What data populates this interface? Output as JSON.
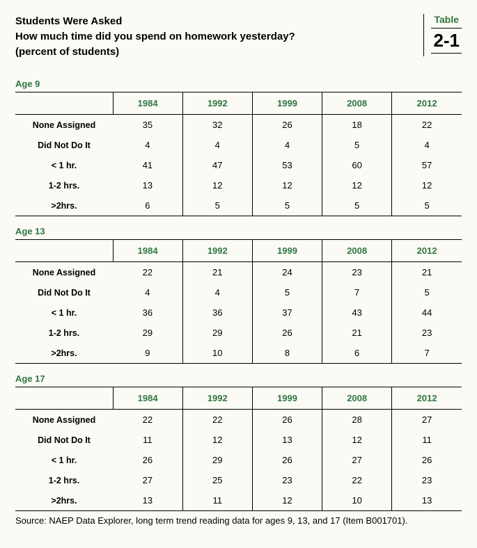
{
  "colors": {
    "accent": "#2a7a3f",
    "text": "#000000",
    "background": "#fcfaf5",
    "border": "#000000"
  },
  "header": {
    "line1": "Students Were Asked",
    "line2": "How much time did you spend on homework yesterday?",
    "line3": "(percent of students)",
    "table_label": "Table",
    "table_number": "2-1"
  },
  "years": [
    "1984",
    "1992",
    "1999",
    "2008",
    "2012"
  ],
  "row_labels": [
    "None Assigned",
    "Did Not Do It",
    "< 1 hr.",
    "1-2 hrs.",
    ">2hrs."
  ],
  "sections": [
    {
      "title": "Age 9",
      "rows": [
        [
          35,
          32,
          26,
          18,
          22
        ],
        [
          4,
          4,
          4,
          5,
          4
        ],
        [
          41,
          47,
          53,
          60,
          57
        ],
        [
          13,
          12,
          12,
          12,
          12
        ],
        [
          6,
          5,
          5,
          5,
          5
        ]
      ]
    },
    {
      "title": "Age 13",
      "rows": [
        [
          22,
          21,
          24,
          23,
          21
        ],
        [
          4,
          4,
          5,
          7,
          5
        ],
        [
          36,
          36,
          37,
          43,
          44
        ],
        [
          29,
          29,
          26,
          21,
          23
        ],
        [
          9,
          10,
          8,
          6,
          7
        ]
      ]
    },
    {
      "title": "Age 17",
      "rows": [
        [
          22,
          22,
          26,
          28,
          27
        ],
        [
          11,
          12,
          13,
          12,
          11
        ],
        [
          26,
          29,
          26,
          27,
          26
        ],
        [
          27,
          25,
          23,
          22,
          23
        ],
        [
          13,
          11,
          12,
          10,
          13
        ]
      ]
    }
  ],
  "source": "Source: NAEP Data Explorer, long term trend reading data for ages 9, 13, and 17 (Item B001701)."
}
